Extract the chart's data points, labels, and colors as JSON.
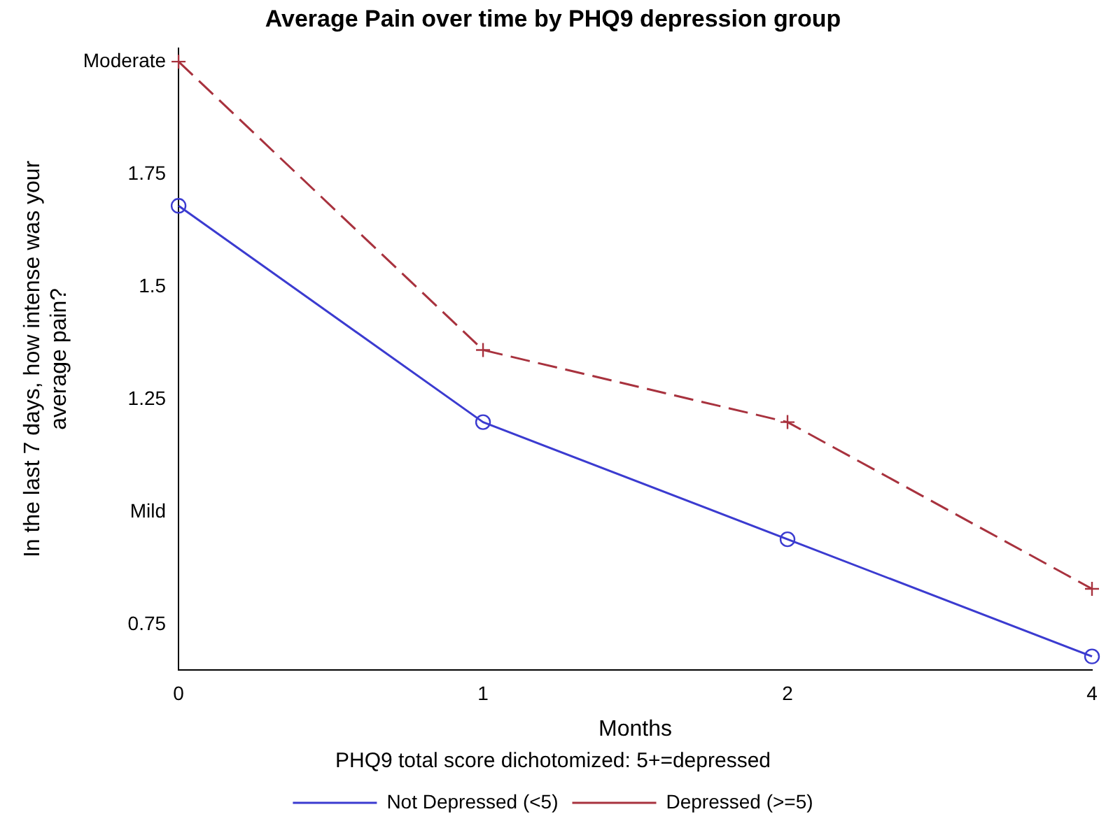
{
  "chart_data": {
    "type": "line",
    "title": "Average Pain over time by PHQ9 depression group",
    "xlabel": "Months",
    "ylabel": "In the last 7 days, how intense was your average pain?",
    "legend_title": "PHQ9 total score dichotomized: 5+=depressed",
    "categories": [
      "0",
      "1",
      "2",
      "4"
    ],
    "series": [
      {
        "name": "Not Depressed (<5)",
        "color": "#3b3bd0",
        "values": [
          1.68,
          1.2,
          0.94,
          0.68
        ],
        "marker": "circle",
        "line_style": "solid"
      },
      {
        "name": "Depressed (>=5)",
        "color": "#a8323e",
        "values": [
          2.0,
          1.36,
          1.2,
          0.83
        ],
        "marker": "cross",
        "line_style": "dashed"
      }
    ],
    "ylim": [
      0.65,
      2.03
    ],
    "yticks": [
      {
        "value": 2,
        "label": "Moderate"
      },
      1.75,
      1.5,
      1.25,
      {
        "value": 1,
        "label": "Mild"
      },
      0.75
    ],
    "grid": false,
    "legend": "bottom"
  }
}
